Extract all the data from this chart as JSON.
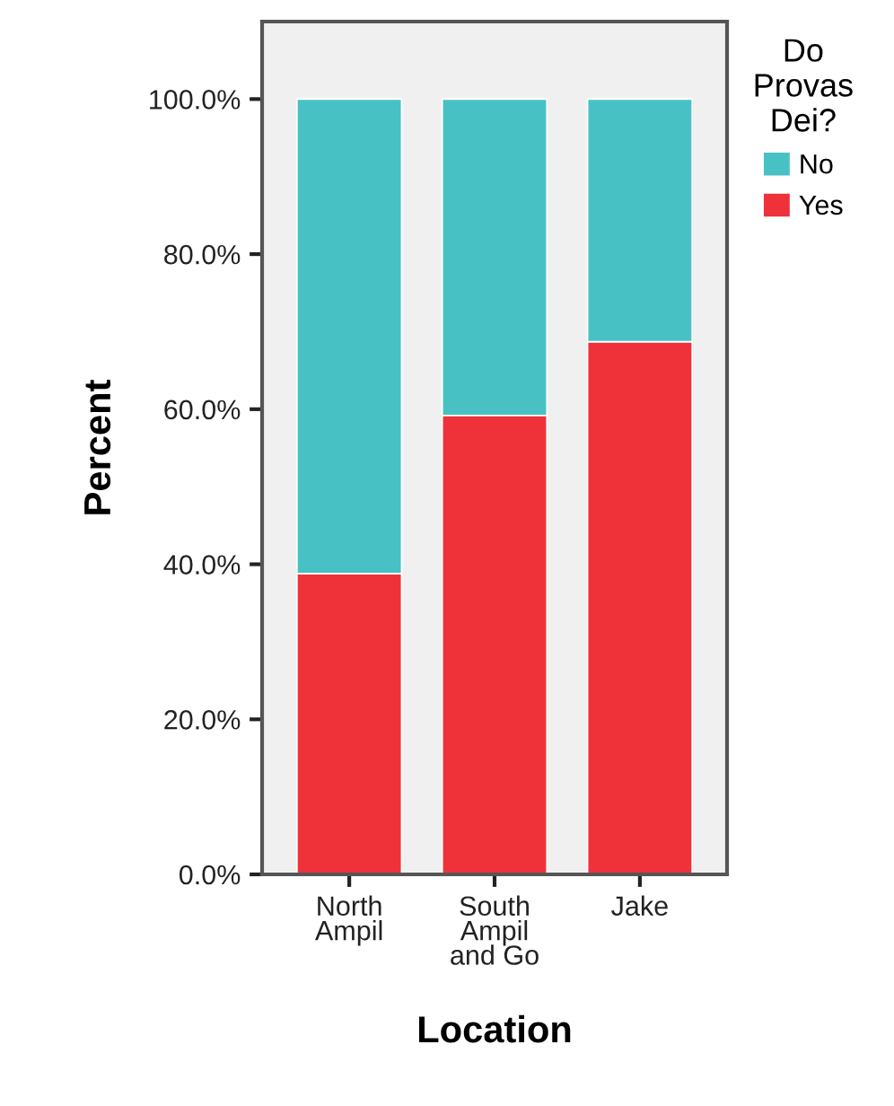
{
  "chart_data": {
    "type": "bar",
    "stacked": true,
    "xlabel": "Location",
    "ylabel": "Percent",
    "legend_title": "Do\nProvas\nDei?",
    "categories": [
      "North\nAmpil",
      "South\nAmpil\nand Go",
      "Jake"
    ],
    "series": [
      {
        "name": "Yes",
        "color": "#ef323a",
        "values": [
          38.8,
          59.2,
          68.7
        ]
      },
      {
        "name": "No",
        "color": "#48c1c4",
        "values": [
          61.2,
          40.8,
          31.3
        ]
      }
    ],
    "ylim": [
      0,
      110
    ],
    "yticks": [
      {
        "value": 0,
        "label": "0.0%"
      },
      {
        "value": 20,
        "label": "20.0%"
      },
      {
        "value": 40,
        "label": "40.0%"
      },
      {
        "value": 60,
        "label": "60.0%"
      },
      {
        "value": 80,
        "label": "80.0%"
      },
      {
        "value": 100,
        "label": "100.0%"
      }
    ],
    "grid": false,
    "legend": "right"
  }
}
